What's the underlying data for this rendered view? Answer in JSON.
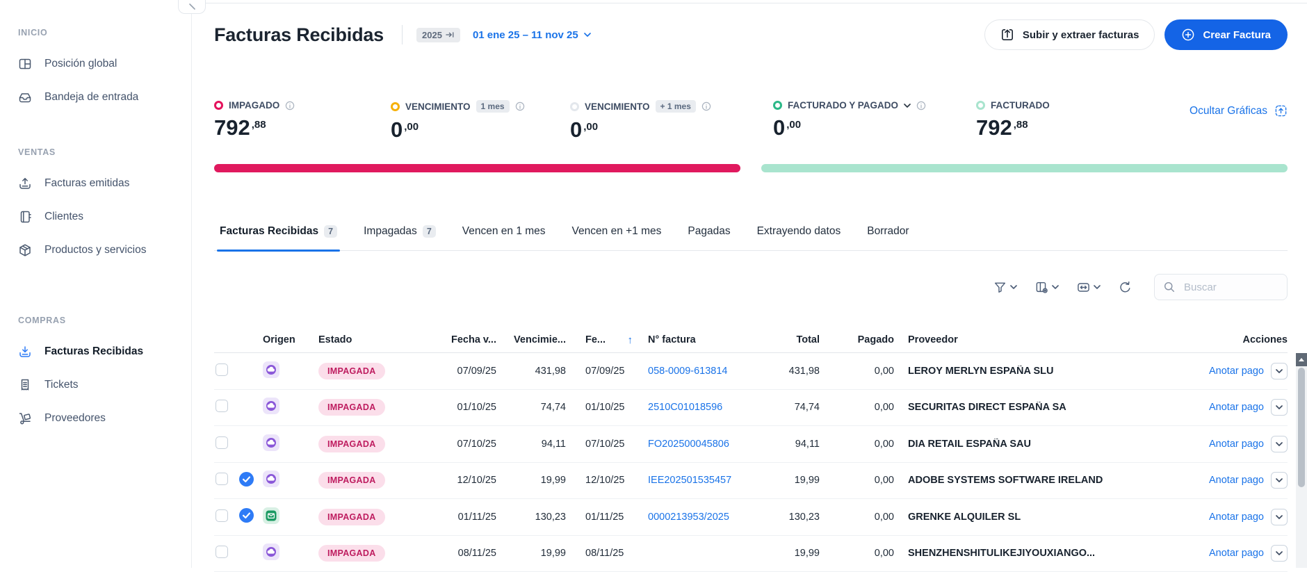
{
  "sidebar": {
    "sections": [
      {
        "label": "INICIO",
        "items": [
          {
            "label": "Posición global",
            "icon": "grid"
          },
          {
            "label": "Bandeja de entrada",
            "icon": "inbox"
          }
        ]
      },
      {
        "label": "VENTAS",
        "items": [
          {
            "label": "Facturas emitidas",
            "icon": "tray-up"
          },
          {
            "label": "Clientes",
            "icon": "book"
          },
          {
            "label": "Productos y servicios",
            "icon": "package"
          }
        ]
      },
      {
        "label": "COMPRAS",
        "items": [
          {
            "label": "Facturas Recibidas",
            "icon": "tray-down",
            "active": true
          },
          {
            "label": "Tickets",
            "icon": "receipt"
          },
          {
            "label": "Proveedores",
            "icon": "trolley"
          }
        ]
      }
    ]
  },
  "header": {
    "title": "Facturas Recibidas",
    "year_badge": "2025",
    "date_range": "01 ene 25 – 11 nov 25",
    "upload_button": "Subir y extraer facturas",
    "create_button": "Crear Factura"
  },
  "kpis": [
    {
      "label": "IMPAGADO",
      "ring_color": "#e4125c",
      "value_int": "792",
      "value_dec": ",88",
      "info": true
    },
    {
      "label": "VENCIMIENTO",
      "badge": "1 mes",
      "ring_color": "#f6b10a",
      "value_int": "0",
      "value_dec": ",00",
      "info": true
    },
    {
      "label": "VENCIMIENTO",
      "badge": "+ 1 mes",
      "ring_color": "#e3e7ec",
      "value_int": "0",
      "value_dec": ",00",
      "info": true
    },
    {
      "label": "FACTURADO Y PAGADO",
      "ring_color": "#2cb888",
      "value_int": "0",
      "value_dec": ",00",
      "info": true,
      "chevron": true
    },
    {
      "label": "FACTURADO",
      "ring_color": "#a9e4ce",
      "value_int": "792",
      "value_dec": ",88"
    }
  ],
  "charts_link": "Ocultar Gráficas",
  "bars": {
    "unpaid_color": "#e0195e",
    "invoiced_color": "#a9e4ce"
  },
  "tabs": [
    {
      "label": "Facturas Recibidas",
      "count": "7",
      "active": true
    },
    {
      "label": "Impagadas",
      "count": "7"
    },
    {
      "label": "Vencen en 1 mes"
    },
    {
      "label": "Vencen en +1 mes"
    },
    {
      "label": "Pagadas"
    },
    {
      "label": "Extrayendo datos"
    },
    {
      "label": "Borrador"
    }
  ],
  "toolbar": {
    "search_placeholder": "Buscar"
  },
  "table": {
    "headers": {
      "origen": "Origen",
      "estado": "Estado",
      "fecha_v": "Fecha v...",
      "vencimiento": "Vencimie...",
      "fe": "Fe...",
      "n_factura": "N° factura",
      "total": "Total",
      "pagado": "Pagado",
      "proveedor": "Proveedor",
      "acciones": "Acciones"
    },
    "action_label": "Anotar pago",
    "rows": [
      {
        "verified": false,
        "origin": "cloud",
        "estado": "IMPAGADA",
        "fecha_v": "07/09/25",
        "vencimiento": "431,98",
        "fe": "07/09/25",
        "n_factura": "058-0009-613814",
        "total": "431,98",
        "pagado": "0,00",
        "proveedor": "LEROY MERLYN ESPAÑA SLU"
      },
      {
        "verified": false,
        "origin": "cloud",
        "estado": "IMPAGADA",
        "fecha_v": "01/10/25",
        "vencimiento": "74,74",
        "fe": "01/10/25",
        "n_factura": "2510C01018596",
        "total": "74,74",
        "pagado": "0,00",
        "proveedor": "SECURITAS DIRECT ESPAÑA SA"
      },
      {
        "verified": false,
        "origin": "cloud",
        "estado": "IMPAGADA",
        "fecha_v": "07/10/25",
        "vencimiento": "94,11",
        "fe": "07/10/25",
        "n_factura": "FO202500045806",
        "total": "94,11",
        "pagado": "0,00",
        "proveedor": "DIA RETAIL ESPAÑA SAU"
      },
      {
        "verified": true,
        "origin": "cloud",
        "estado": "IMPAGADA",
        "fecha_v": "12/10/25",
        "vencimiento": "19,99",
        "fe": "12/10/25",
        "n_factura": "IEE202501535457",
        "total": "19,99",
        "pagado": "0,00",
        "proveedor": "ADOBE SYSTEMS SOFTWARE IRELAND"
      },
      {
        "verified": true,
        "origin": "mail",
        "estado": "IMPAGADA",
        "fecha_v": "01/11/25",
        "vencimiento": "130,23",
        "fe": "01/11/25",
        "n_factura": "0000213953/2025",
        "total": "130,23",
        "pagado": "0,00",
        "proveedor": "GRENKE ALQUILER SL"
      },
      {
        "verified": false,
        "origin": "cloud",
        "estado": "IMPAGADA",
        "fecha_v": "08/11/25",
        "vencimiento": "19,99",
        "fe": "08/11/25",
        "n_factura": "",
        "total": "19,99",
        "pagado": "0,00",
        "proveedor": "SHENZHENSHITULIKEJIYOUXIANGO..."
      }
    ]
  }
}
